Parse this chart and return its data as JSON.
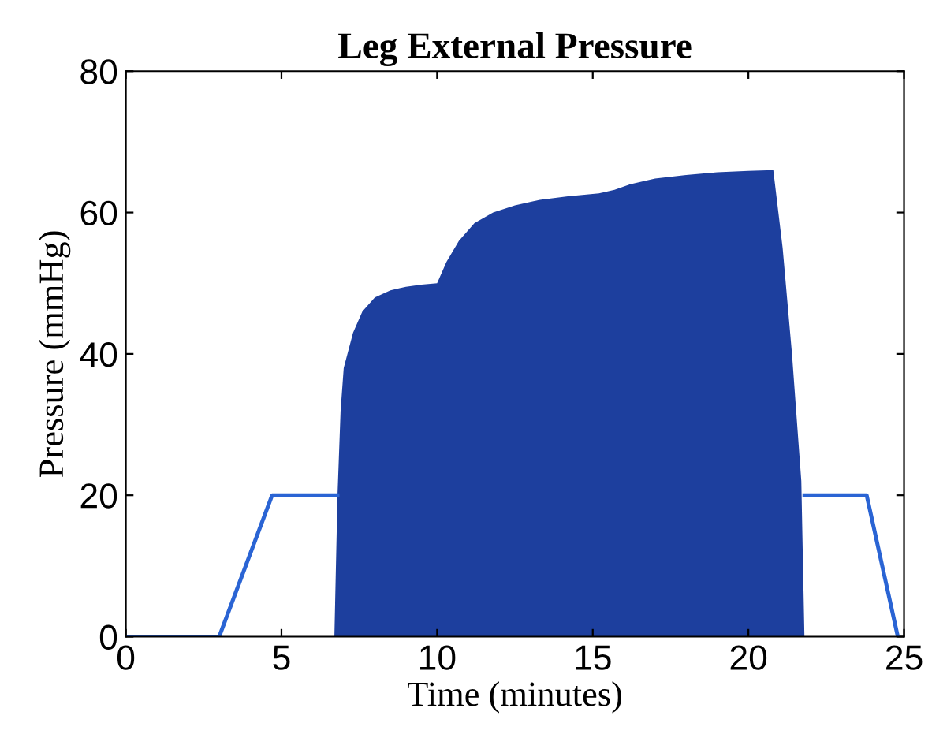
{
  "chart_data": {
    "type": "line",
    "title": "Leg External Pressure",
    "xlabel": "Time (minutes)",
    "ylabel": "Pressure (mmHg)",
    "xlim": [
      0,
      25
    ],
    "xticks": [
      0,
      5,
      10,
      15,
      20,
      25
    ],
    "ylim": [
      0,
      80
    ],
    "yticks": [
      0,
      20,
      40,
      60,
      80
    ],
    "grid": false,
    "series": [
      {
        "type": "line",
        "color": "#2a64d4",
        "x": [
          0,
          3,
          4.7,
          6.8,
          6.9,
          21.7,
          21.8,
          23.8,
          24.8
        ],
        "values": [
          0,
          0,
          20,
          20,
          null,
          null,
          20,
          20,
          0
        ]
      },
      {
        "type": "area",
        "color": "#1d3f9e",
        "x": [
          6.7,
          6.8,
          6.9,
          7.0,
          7.3,
          7.6,
          8.0,
          8.5,
          9.0,
          9.5,
          10.0,
          10.3,
          10.7,
          11.2,
          11.8,
          12.5,
          13.3,
          14.2,
          15.2,
          15.7,
          16.2,
          17.0,
          18.0,
          19.0,
          20.0,
          20.8,
          21.1,
          21.4,
          21.7,
          21.8
        ],
        "values": [
          0,
          20,
          32,
          38,
          43,
          46,
          48,
          49,
          49.5,
          49.8,
          50,
          53,
          56,
          58.5,
          60,
          61,
          61.8,
          62.3,
          62.7,
          63.2,
          64,
          64.8,
          65.3,
          65.7,
          65.9,
          66,
          55,
          40,
          22,
          0
        ]
      }
    ]
  }
}
